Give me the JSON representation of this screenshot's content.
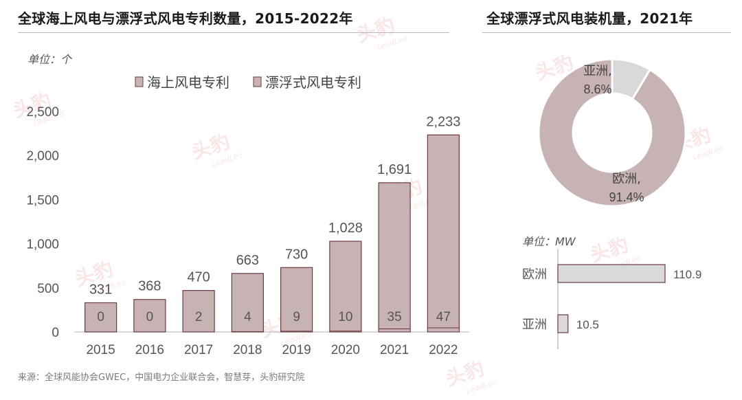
{
  "watermark": {
    "cn": "头豹",
    "en": "LeadLeo"
  },
  "left_panel": {
    "title": "全球海上风电与漂浮式风电专利数量，2015-2022年",
    "unit": "单位：个"
  },
  "right_panel": {
    "title": "全球漂浮式风电装机量，2021年",
    "bar_unit": "单位：MW"
  },
  "source": "来源：全球风能协会GWEC，中国电力企业联合会，智慧芽，头豹研究院",
  "colors": {
    "bar_fill": "#c8b3b4",
    "bar_stroke": "#6b3a3f",
    "donut_main": "#c8b3b4",
    "donut_small": "#d9d9d9",
    "hbar_fill": "#d9d9d9",
    "hbar_stroke": "#6b3a3f",
    "watermark": "#f6c9c9"
  },
  "chart_data": [
    {
      "type": "bar",
      "title": "全球海上风电与漂浮式风电专利数量，2015-2022年",
      "ylabel": "单位：个",
      "categories": [
        "2015",
        "2016",
        "2017",
        "2018",
        "2019",
        "2020",
        "2021",
        "2022"
      ],
      "series": [
        {
          "name": "海上风电专利",
          "values": [
            331,
            368,
            470,
            663,
            730,
            1028,
            1691,
            2233
          ]
        },
        {
          "name": "漂浮式风电专利",
          "values": [
            0,
            0,
            2,
            4,
            9,
            10,
            35,
            47
          ]
        }
      ],
      "ylim": [
        0,
        2500
      ],
      "yticks": [
        0,
        500,
        1000,
        1500,
        2000,
        2500
      ],
      "ytick_labels": [
        "0",
        "500",
        "1,000",
        "1,500",
        "2,000",
        "2,500"
      ],
      "value_labels": [
        "331",
        "368",
        "470",
        "663",
        "730",
        "1,028",
        "1,691",
        "2,233"
      ],
      "inner_labels": [
        "0",
        "0",
        "2",
        "4",
        "9",
        "10",
        "35",
        "47"
      ],
      "legend": "top",
      "grid": false
    },
    {
      "type": "pie",
      "title": "全球漂浮式风电装机量，2021年",
      "donut": true,
      "slices": [
        {
          "label": "欧洲",
          "value": 91.4,
          "text": "91.4%"
        },
        {
          "label": "亚洲",
          "value": 8.6,
          "text": "8.6%"
        }
      ]
    },
    {
      "type": "bar",
      "orientation": "horizontal",
      "xlabel": "单位：MW",
      "categories": [
        "欧洲",
        "亚洲"
      ],
      "values": [
        110.9,
        10.5
      ],
      "value_labels": [
        "110.9",
        "10.5"
      ]
    }
  ]
}
